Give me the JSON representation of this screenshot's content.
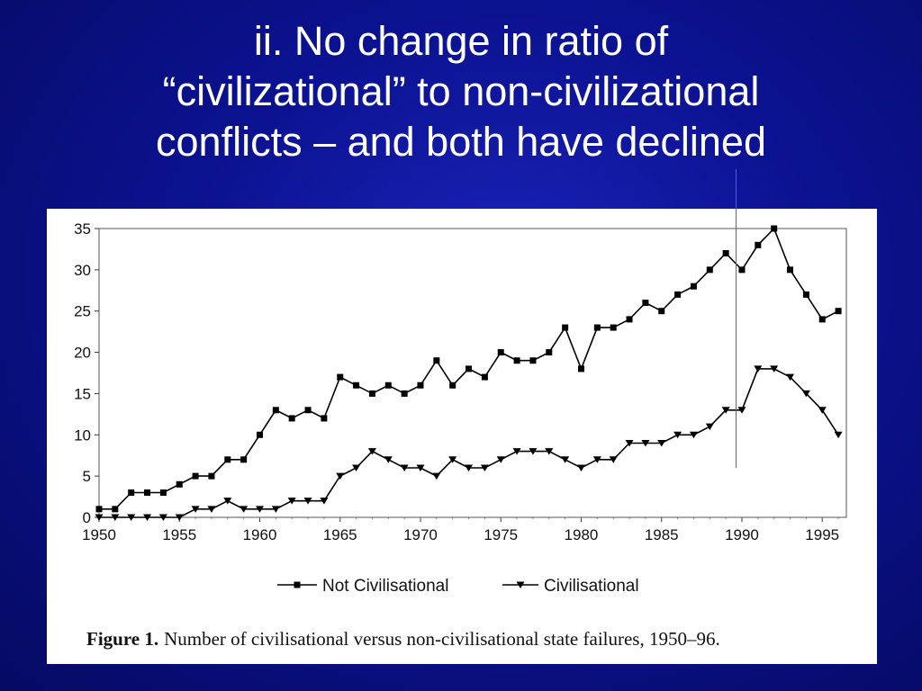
{
  "slide": {
    "title_lines": [
      "ii. No change in ratio of",
      "“civilizational”  to non-civilizational",
      "conflicts – and both have declined"
    ],
    "background_color": "#0b1290",
    "title_color": "#ffffff",
    "marker_line_color": "#2f6fd6"
  },
  "figure": {
    "caption_label": "Figure 1.",
    "caption_text": "Number of civilisational versus non-civilisational state failures, 1950–96."
  },
  "chart_data": {
    "type": "line",
    "x": [
      1950,
      1951,
      1952,
      1953,
      1954,
      1955,
      1956,
      1957,
      1958,
      1959,
      1960,
      1961,
      1962,
      1963,
      1964,
      1965,
      1966,
      1967,
      1968,
      1969,
      1970,
      1971,
      1972,
      1973,
      1974,
      1975,
      1976,
      1977,
      1978,
      1979,
      1980,
      1981,
      1982,
      1983,
      1984,
      1985,
      1986,
      1987,
      1988,
      1989,
      1990,
      1991,
      1992,
      1993,
      1994,
      1995,
      1996
    ],
    "series": [
      {
        "name": "Not Civilisational",
        "marker": "square",
        "values": [
          1,
          1,
          3,
          3,
          3,
          4,
          5,
          5,
          7,
          7,
          10,
          13,
          12,
          13,
          12,
          17,
          16,
          15,
          16,
          15,
          16,
          19,
          16,
          18,
          17,
          20,
          19,
          19,
          20,
          23,
          18,
          23,
          23,
          24,
          26,
          25,
          27,
          28,
          30,
          32,
          30,
          33,
          35,
          30,
          27,
          24,
          25
        ]
      },
      {
        "name": "Civilisational",
        "marker": "triangle-down",
        "values": [
          0,
          0,
          0,
          0,
          0,
          0,
          1,
          1,
          2,
          1,
          1,
          1,
          2,
          2,
          2,
          5,
          6,
          8,
          7,
          6,
          6,
          5,
          7,
          6,
          6,
          7,
          8,
          8,
          8,
          7,
          6,
          7,
          7,
          9,
          9,
          9,
          10,
          10,
          11,
          13,
          13,
          18,
          18,
          17,
          15,
          13,
          10
        ]
      }
    ],
    "x_ticks": [
      "1950",
      "1955",
      "1960",
      "1965",
      "1970",
      "1975",
      "1980",
      "1985",
      "1990",
      "1995"
    ],
    "y_ticks": [
      "0",
      "5",
      "10",
      "15",
      "20",
      "25",
      "30",
      "35"
    ],
    "xlim": [
      1950,
      1996.5
    ],
    "ylim": [
      0,
      35
    ],
    "grid": false,
    "legend_position": "bottom",
    "line_color": "#000000"
  }
}
